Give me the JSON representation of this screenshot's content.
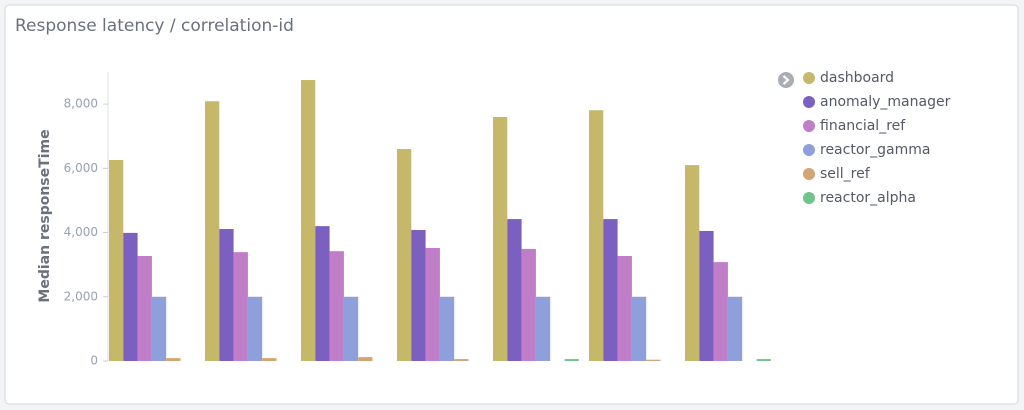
{
  "chart_data": {
    "type": "bar",
    "title": "Response latency / correlation-id",
    "y_label": "Median responseTime",
    "categories": [
      null,
      null,
      null,
      null,
      null,
      null,
      null
    ],
    "series": [
      {
        "name": "dashboard",
        "color": "#c6b86a",
        "values": [
          6260,
          8090,
          8750,
          6600,
          7600,
          7810,
          6100
        ]
      },
      {
        "name": "anomaly_manager",
        "color": "#7b60c0",
        "values": [
          3990,
          4110,
          4200,
          4080,
          4420,
          4420,
          4050
        ]
      },
      {
        "name": "financial_ref",
        "color": "#c07ec8",
        "values": [
          3270,
          3390,
          3420,
          3520,
          3490,
          3270,
          3080
        ]
      },
      {
        "name": "reactor_gamma",
        "color": "#8f9fdc",
        "values": [
          2000,
          2000,
          2000,
          2000,
          2000,
          2000,
          2000
        ]
      },
      {
        "name": "sell_ref",
        "color": "#d3a574",
        "values": [
          90,
          90,
          120,
          60,
          null,
          40,
          null
        ]
      },
      {
        "name": "reactor_alpha",
        "color": "#6ec48a",
        "values": [
          null,
          null,
          null,
          null,
          60,
          null,
          60
        ]
      }
    ],
    "ylim": [
      0,
      9000
    ],
    "yticks": [
      0,
      {
        "value": 2000,
        "label": "2,000"
      },
      {
        "value": 4000,
        "label": "4,000"
      },
      {
        "value": 6000,
        "label": "6,000"
      },
      {
        "value": 8000,
        "label": "8,000"
      }
    ],
    "legend": "right"
  }
}
